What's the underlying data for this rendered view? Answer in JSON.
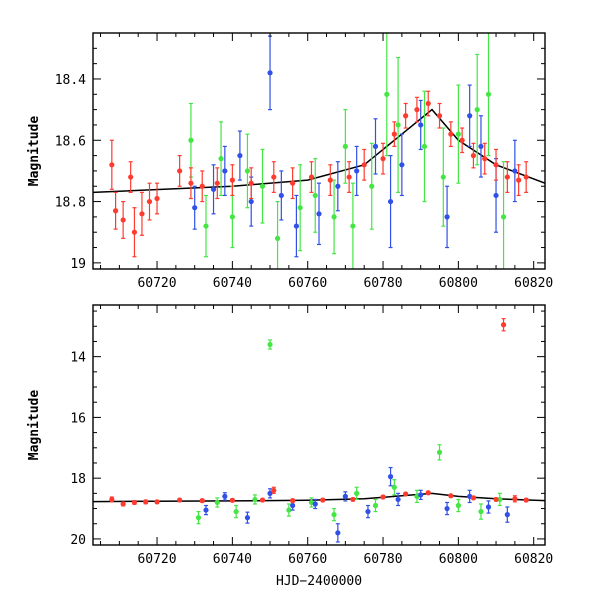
{
  "chart_data": [
    {
      "type": "scatter",
      "panel": "top",
      "xlabel": "",
      "ylabel": "Magnitude",
      "xlim": [
        60703,
        60823
      ],
      "ylim": [
        18.25,
        19.02
      ],
      "y_inverted": true,
      "xticks": [
        60720,
        60740,
        60760,
        60780,
        60800,
        60820
      ],
      "yticks": [
        18.4,
        18.6,
        18.8,
        19.0
      ],
      "ytick_labels": [
        "18.4",
        "18.6",
        "18.8",
        "19"
      ],
      "grid": false,
      "legend": "none",
      "model_line": {
        "x": [
          60703,
          60740,
          60760,
          60775,
          60785,
          60793,
          60800,
          60810,
          60823
        ],
        "y": [
          18.77,
          18.75,
          18.73,
          18.68,
          18.58,
          18.5,
          18.6,
          18.68,
          18.74
        ]
      },
      "series": [
        {
          "color": "#ff3b2f",
          "x": [
            60708,
            60709,
            60711,
            60713,
            60714,
            60716,
            60718,
            60720,
            60726,
            60729,
            60732,
            60736,
            60740,
            60745,
            60751,
            60756,
            60761,
            60766,
            60771,
            60775,
            60780,
            60783,
            60786,
            60789,
            60792,
            60795,
            60798,
            60801,
            60804,
            60807,
            60810,
            60813,
            60816,
            60818
          ],
          "y": [
            18.68,
            18.83,
            18.86,
            18.72,
            18.9,
            18.84,
            18.8,
            18.79,
            18.7,
            18.74,
            18.75,
            18.74,
            18.73,
            18.74,
            18.72,
            18.74,
            18.72,
            18.73,
            18.72,
            18.68,
            18.66,
            18.58,
            18.52,
            18.5,
            18.48,
            18.52,
            18.58,
            18.6,
            18.65,
            18.66,
            18.68,
            18.72,
            18.73,
            18.72
          ],
          "err": [
            0.08,
            0.06,
            0.06,
            0.05,
            0.08,
            0.07,
            0.06,
            0.05,
            0.05,
            0.05,
            0.05,
            0.05,
            0.05,
            0.05,
            0.05,
            0.05,
            0.05,
            0.05,
            0.05,
            0.05,
            0.05,
            0.04,
            0.04,
            0.04,
            0.04,
            0.04,
            0.04,
            0.04,
            0.04,
            0.05,
            0.05,
            0.05,
            0.05,
            0.05
          ]
        },
        {
          "color": "#3050e8",
          "x": [
            60730,
            60735,
            60738,
            60742,
            60745,
            60750,
            60753,
            60757,
            60763,
            60768,
            60773,
            60778,
            60782,
            60785,
            60790,
            60797,
            60803,
            60806,
            60810,
            60815
          ],
          "y": [
            18.82,
            18.76,
            18.7,
            18.65,
            18.8,
            18.38,
            18.78,
            18.88,
            18.84,
            18.75,
            18.7,
            18.62,
            18.8,
            18.68,
            18.55,
            18.85,
            18.52,
            18.62,
            18.78,
            18.7
          ],
          "err": [
            0.07,
            0.08,
            0.08,
            0.08,
            0.08,
            0.12,
            0.08,
            0.1,
            0.1,
            0.08,
            0.08,
            0.09,
            0.15,
            0.1,
            0.08,
            0.1,
            0.1,
            0.1,
            0.12,
            0.1
          ]
        },
        {
          "color": "#44e644",
          "x": [
            60729,
            60733,
            60737,
            60740,
            60744,
            60748,
            60752,
            60758,
            60762,
            60767,
            60770,
            60772,
            60777,
            60781,
            60784,
            60791,
            60796,
            60800,
            60805,
            60808,
            60812
          ],
          "y": [
            18.6,
            18.88,
            18.66,
            18.85,
            18.7,
            18.75,
            18.92,
            18.82,
            18.78,
            18.85,
            18.62,
            18.88,
            18.75,
            18.45,
            18.55,
            18.62,
            18.72,
            18.58,
            18.5,
            18.45,
            18.85
          ],
          "err": [
            0.12,
            0.1,
            0.12,
            0.1,
            0.12,
            0.12,
            0.12,
            0.14,
            0.12,
            0.12,
            0.12,
            0.14,
            0.14,
            0.2,
            0.22,
            0.18,
            0.16,
            0.16,
            0.18,
            0.2,
            0.18
          ]
        }
      ]
    },
    {
      "type": "scatter",
      "panel": "bottom",
      "xlabel": "HJD−2400000",
      "ylabel": "Magnitude",
      "xlim": [
        60703,
        60823
      ],
      "ylim": [
        12.3,
        20.2
      ],
      "y_inverted": true,
      "xticks": [
        60720,
        60740,
        60760,
        60780,
        60800,
        60820
      ],
      "yticks": [
        14,
        16,
        18,
        20
      ],
      "ytick_labels": [
        "14",
        "16",
        "18",
        "20"
      ],
      "grid": false,
      "legend": "none",
      "model_line": {
        "x": [
          60703,
          60740,
          60760,
          60775,
          60785,
          60793,
          60800,
          60810,
          60823
        ],
        "y": [
          18.77,
          18.75,
          18.73,
          18.68,
          18.58,
          18.5,
          18.6,
          18.68,
          18.74
        ]
      },
      "series": [
        {
          "color": "#ff3b2f",
          "x": [
            60708,
            60711,
            60714,
            60717,
            60720,
            60726,
            60732,
            60740,
            60748,
            60751,
            60756,
            60764,
            60772,
            60780,
            60786,
            60792,
            60798,
            60804,
            60810,
            60812,
            60815,
            60818
          ],
          "y": [
            18.7,
            18.85,
            18.8,
            18.78,
            18.78,
            18.72,
            18.74,
            18.73,
            18.72,
            18.4,
            18.74,
            18.72,
            18.7,
            18.62,
            18.52,
            18.48,
            18.58,
            18.65,
            18.7,
            12.95,
            18.68,
            18.72
          ],
          "err": [
            0.08,
            0.06,
            0.06,
            0.06,
            0.05,
            0.05,
            0.05,
            0.05,
            0.05,
            0.1,
            0.05,
            0.05,
            0.05,
            0.05,
            0.04,
            0.04,
            0.04,
            0.05,
            0.05,
            0.2,
            0.1,
            0.05
          ]
        },
        {
          "color": "#3050e8",
          "x": [
            60733,
            60738,
            60744,
            60750,
            60756,
            60762,
            60768,
            60770,
            60776,
            60782,
            60784,
            60790,
            60797,
            60803,
            60808,
            60813
          ],
          "y": [
            19.05,
            18.6,
            19.3,
            18.5,
            18.9,
            18.85,
            19.8,
            18.6,
            19.1,
            17.95,
            18.7,
            18.55,
            19.0,
            18.6,
            18.95,
            19.2
          ],
          "err": [
            0.15,
            0.12,
            0.18,
            0.15,
            0.15,
            0.15,
            0.3,
            0.15,
            0.2,
            0.3,
            0.2,
            0.15,
            0.2,
            0.2,
            0.2,
            0.25
          ]
        },
        {
          "color": "#44e644",
          "x": [
            60731,
            60736,
            60741,
            60746,
            60750,
            60755,
            60761,
            60767,
            60773,
            60778,
            60783,
            60789,
            60795,
            60800,
            60806,
            60811
          ],
          "y": [
            19.3,
            18.8,
            19.1,
            18.7,
            13.6,
            19.05,
            18.8,
            19.2,
            18.5,
            18.9,
            18.3,
            18.6,
            17.15,
            18.9,
            19.1,
            18.7
          ],
          "err": [
            0.2,
            0.15,
            0.2,
            0.15,
            0.15,
            0.2,
            0.15,
            0.2,
            0.2,
            0.2,
            0.25,
            0.2,
            0.25,
            0.2,
            0.25,
            0.2
          ]
        }
      ]
    }
  ]
}
